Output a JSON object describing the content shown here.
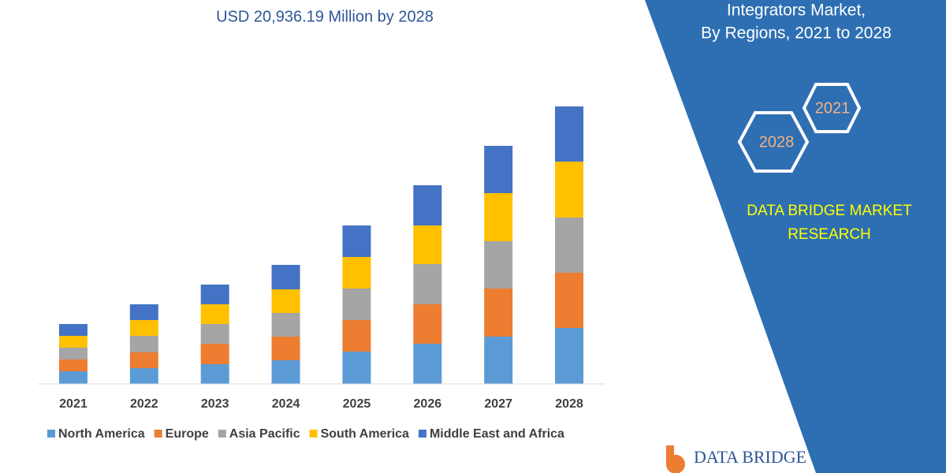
{
  "chart_data": {
    "type": "stacked_bar",
    "title": "USD 20,936.19 Million by 2028",
    "categories": [
      "2021",
      "2022",
      "2023",
      "2024",
      "2025",
      "2026",
      "2027",
      "2028"
    ],
    "series": [
      {
        "name": "North America",
        "color": "#5b9bd5",
        "values": [
          16,
          20,
          25,
          30,
          41,
          51,
          60,
          71
        ]
      },
      {
        "name": "Europe",
        "color": "#ed7d31",
        "values": [
          15,
          20,
          26,
          30,
          40,
          50,
          61,
          70
        ]
      },
      {
        "name": "Asia Pacific",
        "color": "#a5a5a5",
        "values": [
          15,
          21,
          25,
          30,
          40,
          51,
          60,
          70
        ]
      },
      {
        "name": "South America",
        "color": "#ffc000",
        "values": [
          15,
          20,
          25,
          30,
          40,
          49,
          61,
          71
        ]
      },
      {
        "name": "Middle East and Africa",
        "color": "#4472c4",
        "values": [
          15,
          20,
          25,
          31,
          40,
          51,
          60,
          70
        ]
      }
    ]
  },
  "side_panel": {
    "subtitle_lines": [
      "Integrators Market,",
      "By Regions, 2021 to 2028"
    ],
    "hexagon_labels": [
      "2021",
      "2028"
    ],
    "brand_lines": [
      "DATA BRIDGE MARKET",
      "RESEARCH"
    ],
    "logo_text": "DATA BRIDGE"
  }
}
